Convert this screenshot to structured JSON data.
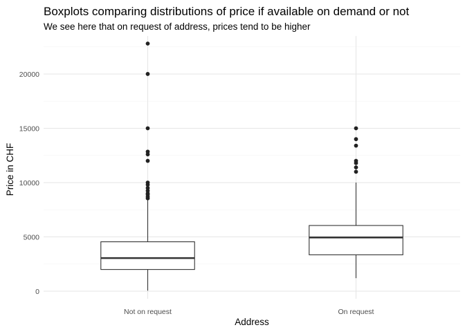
{
  "chart_data": {
    "type": "boxplot",
    "title": "Boxplots comparing distributions of price if available on demand or not",
    "subtitle": "We see here that on request of address, prices tend to be higher",
    "xlabel": "Address",
    "ylabel": "Price in CHF",
    "categories": [
      "Not on request",
      "On request"
    ],
    "ylim": [
      -700,
      23500
    ],
    "yticks": [
      0,
      5000,
      10000,
      15000,
      20000
    ],
    "ytick_labels": [
      "0",
      "5000",
      "10000",
      "15000",
      "20000"
    ],
    "grid": true,
    "boxes": [
      {
        "category": "Not on request",
        "whisker_low": 50,
        "q1": 2000,
        "median": 3050,
        "q3": 4550,
        "whisker_high": 8400,
        "outliers": [
          8550,
          8700,
          8900,
          9000,
          9250,
          9500,
          9800,
          10000,
          12000,
          12600,
          12850,
          15000,
          20000,
          22800
        ]
      },
      {
        "category": "On request",
        "whisker_low": 1200,
        "q1": 3350,
        "median": 4950,
        "q3": 6050,
        "whisker_high": 10000,
        "outliers": [
          11000,
          11400,
          11800,
          12000,
          13400,
          14000,
          15000
        ]
      }
    ],
    "colors": {
      "box_outline": "#333333",
      "point": "#222222",
      "grid_major": "#e5e5e5",
      "grid_minor": "#f3f3f3"
    }
  }
}
